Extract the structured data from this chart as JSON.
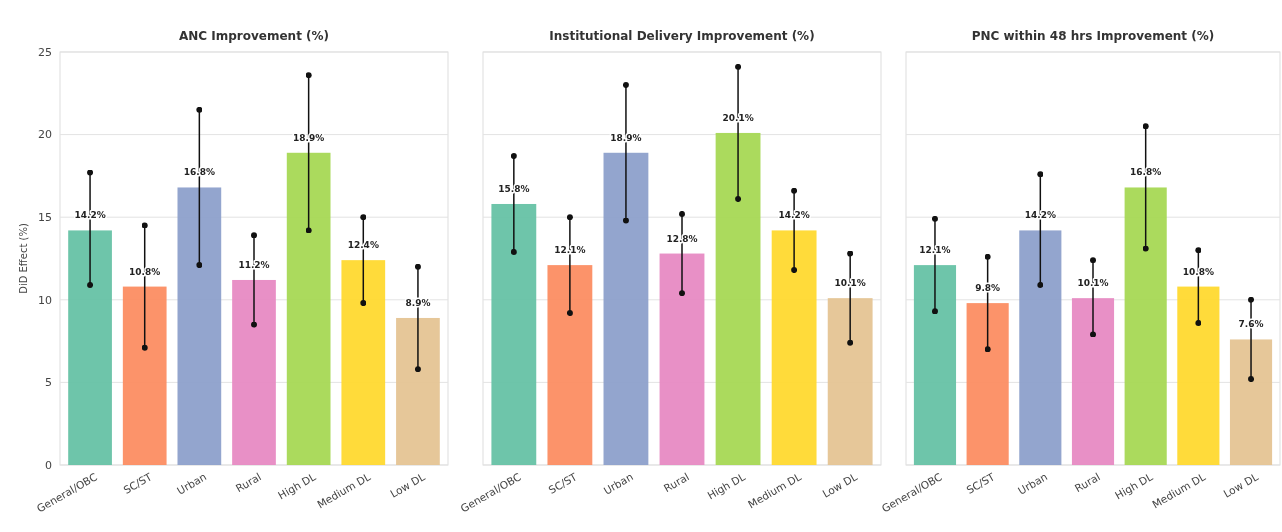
{
  "chart_data": [
    {
      "type": "bar",
      "title": "ANC Improvement (%)",
      "ylabel": "DiD Effect (%)",
      "categories": [
        "General/OBC",
        "SC/ST",
        "Urban",
        "Rural",
        "High DL",
        "Medium DL",
        "Low DL"
      ],
      "values": [
        14.2,
        10.8,
        16.8,
        11.2,
        18.9,
        12.4,
        8.9
      ],
      "colors": [
        "#66c2a5",
        "#fc8d62",
        "#8da0cb",
        "#e78ac3",
        "#a6d854",
        "#ffd92f",
        "#e5c494"
      ],
      "errors": [
        [
          10.9,
          17.7
        ],
        [
          7.1,
          14.5
        ],
        [
          12.1,
          21.5
        ],
        [
          8.5,
          13.9
        ],
        [
          14.2,
          23.6
        ],
        [
          9.8,
          15.0
        ],
        [
          5.8,
          12.0
        ]
      ],
      "value_labels": [
        "14.2%",
        "10.8%",
        "16.8%",
        "11.2%",
        "18.9%",
        "12.4%",
        "8.9%"
      ],
      "ylim": [
        0,
        25
      ],
      "yticks": [
        0,
        5,
        10,
        15,
        20,
        25
      ],
      "grid": "y"
    },
    {
      "type": "bar",
      "title": "Institutional Delivery Improvement (%)",
      "categories": [
        "General/OBC",
        "SC/ST",
        "Urban",
        "Rural",
        "High DL",
        "Medium DL",
        "Low DL"
      ],
      "values": [
        15.8,
        12.1,
        18.9,
        12.8,
        20.1,
        14.2,
        10.1
      ],
      "colors": [
        "#66c2a5",
        "#fc8d62",
        "#8da0cb",
        "#e78ac3",
        "#a6d854",
        "#ffd92f",
        "#e5c494"
      ],
      "errors": [
        [
          12.9,
          18.7
        ],
        [
          9.2,
          15.0
        ],
        [
          14.8,
          23.0
        ],
        [
          10.4,
          15.2
        ],
        [
          16.1,
          24.1
        ],
        [
          11.8,
          16.6
        ],
        [
          7.4,
          12.8
        ]
      ],
      "value_labels": [
        "15.8%",
        "12.1%",
        "18.9%",
        "12.8%",
        "20.1%",
        "14.2%",
        "10.1%"
      ],
      "ylim": [
        0,
        25
      ],
      "yticks": [
        0,
        5,
        10,
        15,
        20,
        25
      ],
      "grid": "y",
      "tick_labels": "x"
    },
    {
      "type": "bar",
      "title": "PNC within 48 hrs Improvement (%)",
      "categories": [
        "General/OBC",
        "SC/ST",
        "Urban",
        "Rural",
        "High DL",
        "Medium DL",
        "Low DL"
      ],
      "values": [
        12.1,
        9.8,
        14.2,
        10.1,
        16.8,
        10.8,
        7.6
      ],
      "colors": [
        "#66c2a5",
        "#fc8d62",
        "#8da0cb",
        "#e78ac3",
        "#a6d854",
        "#ffd92f",
        "#e5c494"
      ],
      "errors": [
        [
          9.3,
          14.9
        ],
        [
          7.0,
          12.6
        ],
        [
          10.9,
          17.6
        ],
        [
          7.9,
          12.4
        ],
        [
          13.1,
          20.5
        ],
        [
          8.6,
          13.0
        ],
        [
          5.2,
          10.0
        ]
      ],
      "value_labels": [
        "12.1%",
        "9.8%",
        "14.2%",
        "10.1%",
        "16.8%",
        "10.8%",
        "7.6%"
      ],
      "ylim": [
        0,
        25
      ],
      "yticks": [
        0,
        5,
        10,
        15,
        20,
        25
      ],
      "grid": "y",
      "tick_labels": "x"
    }
  ]
}
